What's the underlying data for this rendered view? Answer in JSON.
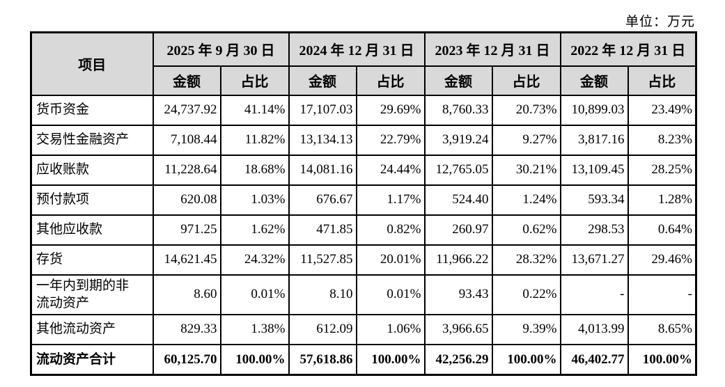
{
  "unit_label": "单位：万元",
  "table": {
    "item_header": "项目",
    "amount_label": "金额",
    "ratio_label": "占比",
    "periods": [
      "2025 年 9 月 30 日",
      "2024 年 12 月 31 日",
      "2023 年 12 月 31 日",
      "2022 年 12 月 31 日"
    ],
    "rows": [
      {
        "label": "货币资金",
        "values": [
          "24,737.92",
          "41.14%",
          "17,107.03",
          "29.69%",
          "8,760.33",
          "20.73%",
          "10,899.03",
          "23.49%"
        ],
        "bold": false
      },
      {
        "label": "交易性金融资产",
        "values": [
          "7,108.44",
          "11.82%",
          "13,134.13",
          "22.79%",
          "3,919.24",
          "9.27%",
          "3,817.16",
          "8.23%"
        ],
        "bold": false
      },
      {
        "label": "应收账款",
        "values": [
          "11,228.64",
          "18.68%",
          "14,081.16",
          "24.44%",
          "12,765.05",
          "30.21%",
          "13,109.45",
          "28.25%"
        ],
        "bold": false
      },
      {
        "label": "预付款项",
        "values": [
          "620.08",
          "1.03%",
          "676.67",
          "1.17%",
          "524.40",
          "1.24%",
          "593.34",
          "1.28%"
        ],
        "bold": false
      },
      {
        "label": "其他应收款",
        "values": [
          "971.25",
          "1.62%",
          "471.85",
          "0.82%",
          "260.97",
          "0.62%",
          "298.53",
          "0.64%"
        ],
        "bold": false
      },
      {
        "label": "存货",
        "values": [
          "14,621.45",
          "24.32%",
          "11,527.85",
          "20.01%",
          "11,966.22",
          "28.32%",
          "13,671.27",
          "29.46%"
        ],
        "bold": false
      },
      {
        "label": "一年内到期的非流动资产",
        "values": [
          "8.60",
          "0.01%",
          "8.10",
          "0.01%",
          "93.43",
          "0.22%",
          "-",
          "-"
        ],
        "bold": false
      },
      {
        "label": "其他流动资产",
        "values": [
          "829.33",
          "1.38%",
          "612.09",
          "1.06%",
          "3,966.65",
          "9.39%",
          "4,013.99",
          "8.65%"
        ],
        "bold": false
      },
      {
        "label": "流动资产合计",
        "values": [
          "60,125.70",
          "100.00%",
          "57,618.86",
          "100.00%",
          "42,256.29",
          "100.00%",
          "46,402.77",
          "100.00%"
        ],
        "bold": true
      }
    ]
  }
}
